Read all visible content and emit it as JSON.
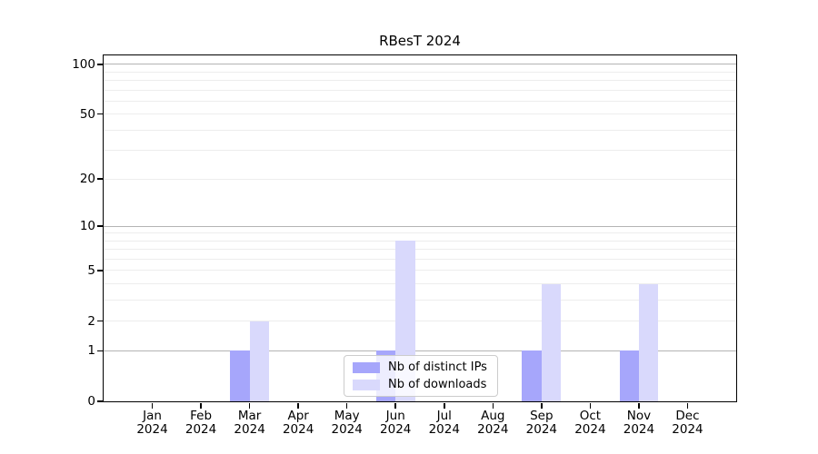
{
  "chart_data": {
    "type": "bar",
    "title": "RBesT 2024",
    "xlabel": "",
    "ylabel": "",
    "year_label": "2024",
    "categories": [
      "Jan",
      "Feb",
      "Mar",
      "Apr",
      "May",
      "Jun",
      "Jul",
      "Aug",
      "Sep",
      "Oct",
      "Nov",
      "Dec"
    ],
    "series": [
      {
        "name": "Nb of distinct IPs",
        "color": "#a6a6fb",
        "values": [
          0,
          0,
          1,
          0,
          0,
          1,
          0,
          0,
          1,
          0,
          1,
          0
        ]
      },
      {
        "name": "Nb of downloads",
        "color": "#d9d9fc",
        "values": [
          0,
          0,
          2,
          0,
          0,
          8,
          0,
          0,
          4,
          0,
          4,
          0
        ]
      }
    ],
    "y_axis": {
      "scale": "log1p",
      "tick_values": [
        0,
        1,
        2,
        5,
        10,
        20,
        50,
        100
      ],
      "major_gridlines": [
        1,
        10,
        100
      ],
      "minor_gridlines": [
        2,
        3,
        4,
        5,
        6,
        7,
        8,
        9,
        20,
        30,
        40,
        50,
        60,
        70,
        80,
        90
      ],
      "axis_top_value": 113,
      "ylim": [
        0,
        113
      ]
    },
    "legend": {
      "position": "lower center",
      "entries": [
        "Nb of distinct IPs",
        "Nb of downloads"
      ]
    },
    "colors": {
      "major_grid": "#b4b4b4",
      "minor_grid": "#ededed",
      "spine": "#000000",
      "background": "#ffffff",
      "text": "#000000"
    },
    "grid": true
  }
}
